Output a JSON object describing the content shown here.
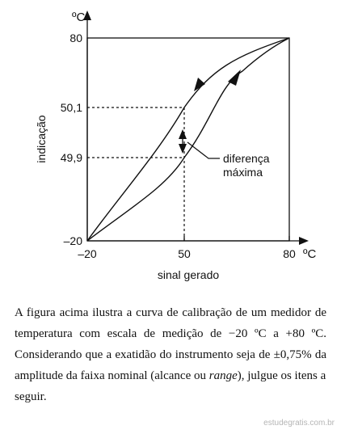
{
  "figure": {
    "y_unit": "ºC",
    "x_unit": "ºC",
    "y_axis_label": "indicação",
    "x_axis_label": "sinal gerado",
    "annotation_line1": "diferença",
    "annotation_line2": "máxima",
    "y_ticks": [
      "80",
      "50,1",
      "49,9",
      "–20"
    ],
    "x_ticks": [
      "–20",
      "50",
      "80"
    ]
  },
  "chart_data": {
    "type": "line",
    "xlabel": "sinal gerado",
    "ylabel": "indicação",
    "x_unit": "ºC",
    "y_unit": "ºC",
    "xlim": [
      -20,
      80
    ],
    "ylim": [
      -20,
      80
    ],
    "x_ticks": [
      -20,
      50,
      80
    ],
    "y_ticks": [
      -20,
      49.9,
      50.1,
      80
    ],
    "grid": false,
    "series": [
      {
        "direction": "descending",
        "x": [
          -20,
          50,
          80
        ],
        "y": [
          -20,
          50.1,
          80
        ]
      },
      {
        "direction": "ascending",
        "x": [
          -20,
          50,
          80
        ],
        "y": [
          -20,
          49.9,
          80
        ]
      }
    ],
    "annotations": [
      {
        "text": "diferença máxima",
        "x": 50,
        "y_range": [
          49.9,
          50.1
        ]
      }
    ]
  },
  "caption": {
    "line1": "A figura acima ilustra a curva de calibração de um medidor de",
    "line2": "temperatura com escala de medição de −20 ºC a +80 ºC.",
    "line3": "Considerando que a exatidão do instrumento seja de ±0,75% da",
    "line4_a": "amplitude da faixa nominal (alcance ou ",
    "line4_em": "range",
    "line4_b": "), julgue os itens a",
    "line5": "seguir."
  },
  "watermark": "estudegratis.com.br"
}
